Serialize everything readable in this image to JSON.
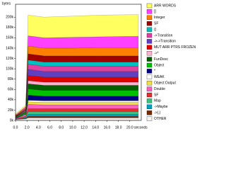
{
  "chart_data": {
    "type": "area",
    "stacked": true,
    "y_label": "bytes",
    "x_label": "seconds",
    "x": [
      0,
      1.8,
      2.2,
      5,
      10,
      15,
      21.5
    ],
    "xlim": [
      0,
      22
    ],
    "ylim": [
      0,
      225000
    ],
    "xticks": [
      {
        "value": 0,
        "label": "0.0"
      },
      {
        "value": 2,
        "label": "2.0"
      },
      {
        "value": 4,
        "label": "4.0"
      },
      {
        "value": 6,
        "label": "6.0"
      },
      {
        "value": 8,
        "label": "8.0"
      },
      {
        "value": 10,
        "label": "10.0"
      },
      {
        "value": 12,
        "label": "12.0"
      },
      {
        "value": 14,
        "label": "14.0"
      },
      {
        "value": 16,
        "label": "16.0"
      },
      {
        "value": 18,
        "label": "18.0"
      },
      {
        "value": 20,
        "label": "20.0"
      }
    ],
    "yticks": [
      {
        "value": 0,
        "label": "0k"
      },
      {
        "value": 20000,
        "label": "20k"
      },
      {
        "value": 40000,
        "label": "40k"
      },
      {
        "value": 60000,
        "label": "60k"
      },
      {
        "value": 80000,
        "label": "80k"
      },
      {
        "value": 100000,
        "label": "100k"
      },
      {
        "value": 120000,
        "label": "120k"
      },
      {
        "value": 140000,
        "label": "140k"
      },
      {
        "value": 160000,
        "label": "160k"
      },
      {
        "value": 180000,
        "label": "180k"
      },
      {
        "value": 200000,
        "label": "200k"
      }
    ],
    "series": [
      {
        "name": "OTHER",
        "color": "#f4f4f4",
        "values": [
          2000,
          3000,
          5000,
          5000,
          5000,
          5000,
          5000
        ]
      },
      {
        "name": "->(,)",
        "color": "#7a2a00",
        "values": [
          0,
          1000,
          3000,
          3000,
          3000,
          3000,
          3000
        ]
      },
      {
        "name": "->Maybe",
        "color": "#00a0c0",
        "values": [
          0,
          1000,
          4000,
          4000,
          4000,
          4000,
          4000
        ]
      },
      {
        "name": "Map",
        "color": "#40c080",
        "values": [
          0,
          1000,
          5000,
          5000,
          5000,
          5000,
          5000
        ]
      },
      {
        "name": "SF",
        "color": "#e03030",
        "values": [
          1000,
          2000,
          6000,
          6000,
          6000,
          6000,
          6000
        ]
      },
      {
        "name": "Double",
        "color": "#ff60c0",
        "values": [
          1000,
          2000,
          8000,
          7000,
          7000,
          7000,
          7000
        ]
      },
      {
        "name": "Object:Output",
        "color": "#f0e040",
        "values": [
          0,
          1000,
          5000,
          5000,
          5000,
          5000,
          5000
        ]
      },
      {
        "name": "WEAK",
        "color": "#ffffff",
        "values": [
          0,
          1000,
          3000,
          3000,
          3000,
          3000,
          3000
        ]
      },
      {
        "name": "*",
        "color": "#000080",
        "values": [
          1000,
          1000,
          10000,
          9000,
          9000,
          9000,
          9000
        ]
      },
      {
        "name": "Object",
        "color": "#00c000",
        "values": [
          1000,
          2000,
          12000,
          11000,
          11000,
          11000,
          11000
        ]
      },
      {
        "name": "FunDesc",
        "color": "#006000",
        "values": [
          1000,
          2000,
          10000,
          10000,
          10000,
          10000,
          10000
        ]
      },
      {
        "name": "->*",
        "color": "#ffb0d0",
        "values": [
          0,
          1000,
          6000,
          6000,
          6000,
          6000,
          6000
        ]
      },
      {
        "name": "MUT ARR PTRS FROZEN",
        "color": "#e00000",
        "values": [
          1000,
          1000,
          10000,
          10000,
          10000,
          10000,
          10000
        ]
      },
      {
        "name": "->->Transition",
        "color": "#6040c0",
        "values": [
          0,
          1000,
          12000,
          11000,
          11000,
          11000,
          11000
        ]
      },
      {
        "name": "->Transition",
        "color": "#e040a0",
        "values": [
          0,
          1000,
          10000,
          10000,
          10000,
          10000,
          10000
        ]
      },
      {
        "name": "()",
        "color": "#00c0c0",
        "values": [
          0,
          1000,
          8000,
          8000,
          8000,
          8000,
          8000
        ]
      },
      {
        "name": "SF",
        "color": "#a00000",
        "values": [
          1000,
          1000,
          12000,
          12000,
          12000,
          12000,
          12000
        ]
      },
      {
        "name": "Integer",
        "color": "#ff8000",
        "values": [
          1000,
          2000,
          15000,
          15000,
          15000,
          16000,
          16000
        ]
      },
      {
        "name": "[]",
        "color": "#ff40ff",
        "values": [
          1000,
          2000,
          20000,
          20000,
          21000,
          21000,
          22000
        ]
      },
      {
        "name": "ARR WORDS",
        "color": "#ffff60",
        "values": [
          2000,
          3000,
          40000,
          40000,
          41000,
          42000,
          42000
        ]
      }
    ]
  }
}
